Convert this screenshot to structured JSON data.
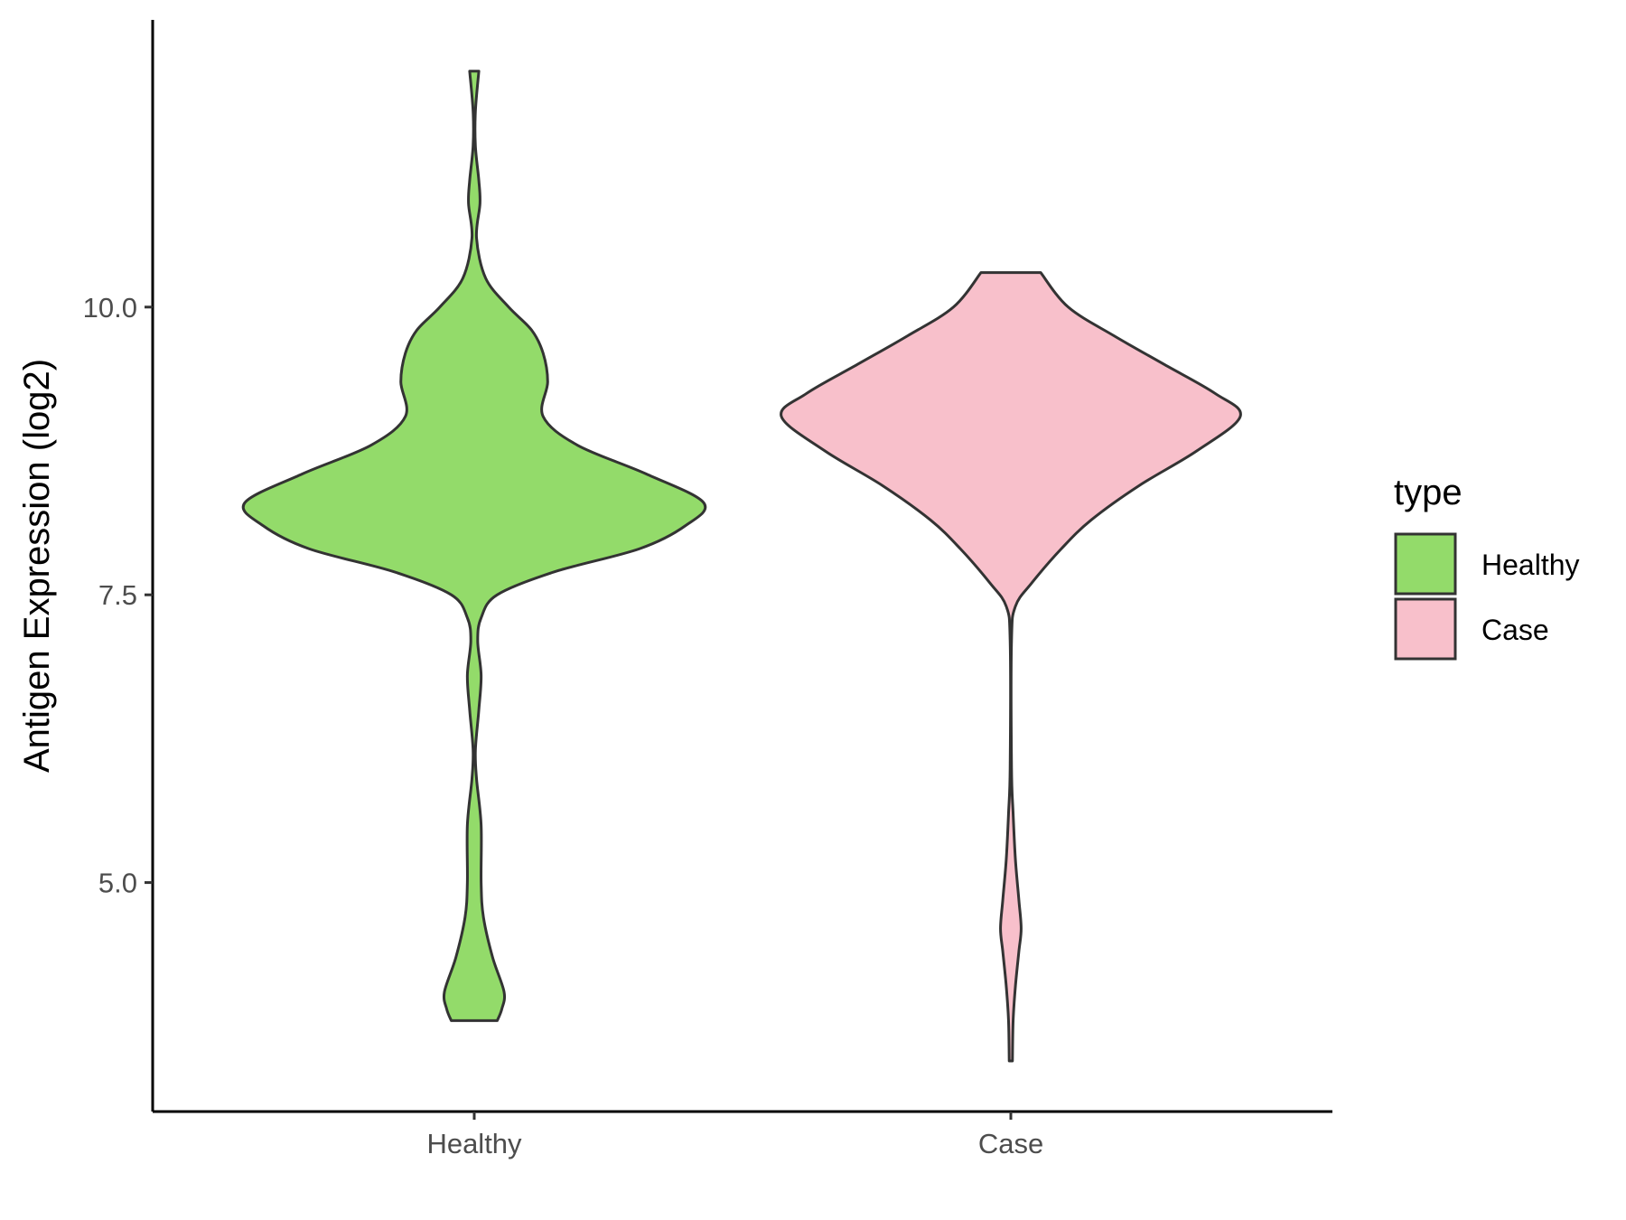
{
  "chart_data": {
    "type": "violin",
    "title": "",
    "xlabel": "",
    "ylabel": "Antigen Expression (log2)",
    "categories": [
      "Healthy",
      "Case"
    ],
    "ylim": [
      3.0,
      12.5
    ],
    "yticks": [
      5.0,
      7.5,
      10.0
    ],
    "ytick_labels": [
      "5.0",
      "7.5",
      "10.0"
    ],
    "grid": false,
    "legend": {
      "title": "type",
      "position": "right",
      "entries": [
        "Healthy",
        "Case"
      ]
    },
    "series": [
      {
        "name": "Healthy",
        "color": "#93db6a",
        "min": 3.8,
        "max": 12.05,
        "density_profile": [
          [
            3.8,
            0.1
          ],
          [
            3.9,
            0.12
          ],
          [
            4.05,
            0.13
          ],
          [
            4.35,
            0.08
          ],
          [
            4.7,
            0.04
          ],
          [
            5.0,
            0.03
          ],
          [
            5.5,
            0.03
          ],
          [
            5.9,
            0.01
          ],
          [
            6.15,
            0.005
          ],
          [
            6.5,
            0.02
          ],
          [
            6.8,
            0.03
          ],
          [
            7.1,
            0.015
          ],
          [
            7.3,
            0.03
          ],
          [
            7.5,
            0.1
          ],
          [
            7.7,
            0.35
          ],
          [
            7.9,
            0.72
          ],
          [
            8.1,
            0.92
          ],
          [
            8.3,
            1.0
          ],
          [
            8.55,
            0.75
          ],
          [
            8.8,
            0.45
          ],
          [
            9.05,
            0.3
          ],
          [
            9.35,
            0.32
          ],
          [
            9.6,
            0.3
          ],
          [
            9.8,
            0.25
          ],
          [
            10.0,
            0.15
          ],
          [
            10.25,
            0.05
          ],
          [
            10.6,
            0.01
          ],
          [
            10.9,
            0.025
          ],
          [
            11.1,
            0.02
          ],
          [
            11.4,
            0.005
          ],
          [
            11.7,
            0.005
          ],
          [
            12.05,
            0.02
          ]
        ]
      },
      {
        "name": "Case",
        "color": "#f8c0cb",
        "min": 3.45,
        "max": 10.3,
        "density_profile": [
          [
            3.45,
            0.007
          ],
          [
            3.8,
            0.01
          ],
          [
            4.1,
            0.02
          ],
          [
            4.4,
            0.035
          ],
          [
            4.6,
            0.045
          ],
          [
            4.85,
            0.035
          ],
          [
            5.2,
            0.02
          ],
          [
            5.6,
            0.01
          ],
          [
            6.0,
            0.003
          ],
          [
            7.1,
            0.003
          ],
          [
            7.4,
            0.02
          ],
          [
            7.6,
            0.09
          ],
          [
            7.9,
            0.22
          ],
          [
            8.15,
            0.35
          ],
          [
            8.45,
            0.56
          ],
          [
            8.75,
            0.81
          ],
          [
            9.05,
            1.0
          ],
          [
            9.25,
            0.89
          ],
          [
            9.5,
            0.67
          ],
          [
            9.75,
            0.45
          ],
          [
            10.0,
            0.25
          ],
          [
            10.3,
            0.13
          ]
        ]
      }
    ]
  }
}
